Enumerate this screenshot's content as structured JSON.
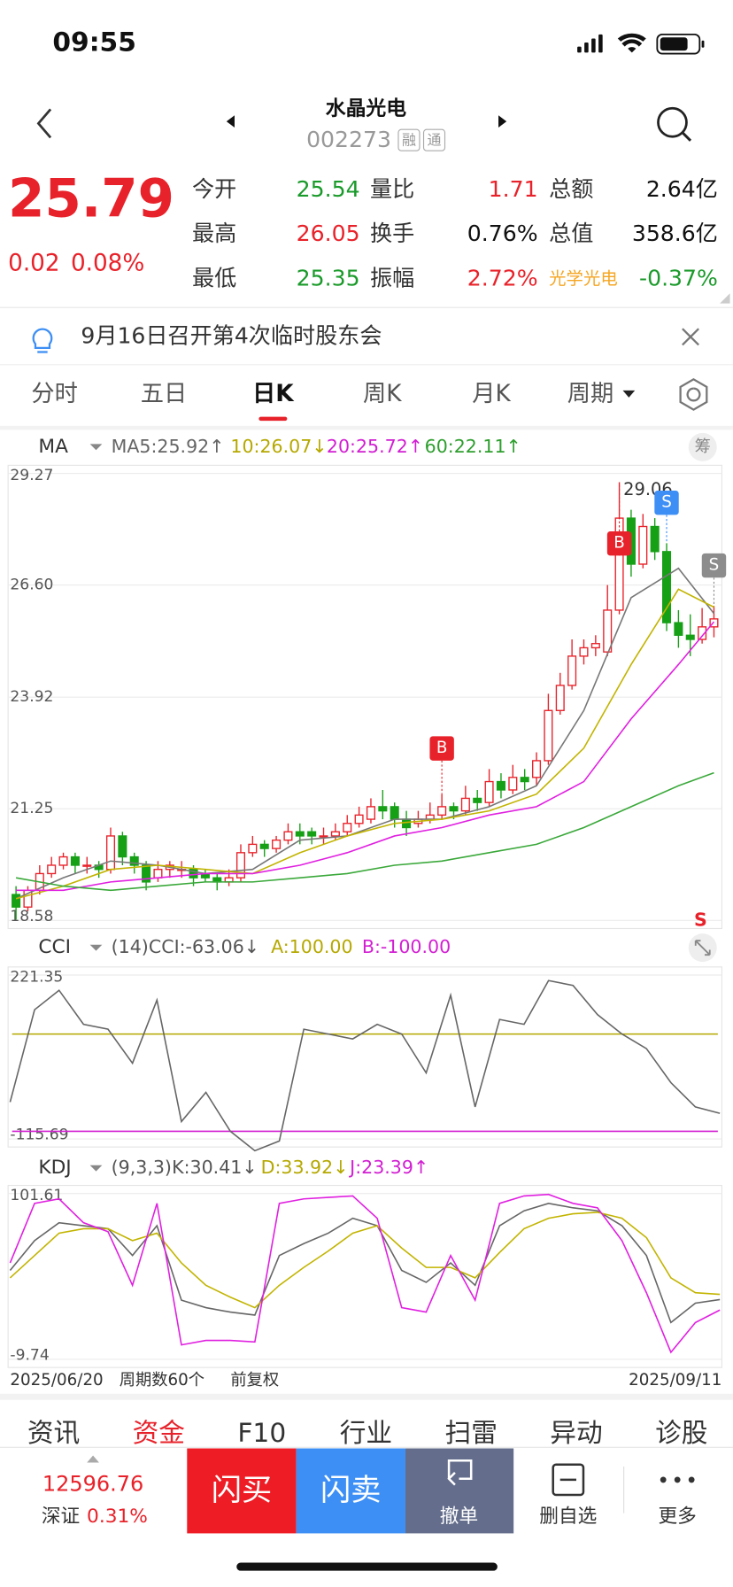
{
  "status": {
    "time": "09:55"
  },
  "header": {
    "name": "水晶光电",
    "code": "002273",
    "badges": [
      "融",
      "通"
    ]
  },
  "quote": {
    "price": "25.79",
    "change": "0.02",
    "change_pct": "0.08%",
    "stats": [
      [
        {
          "label": "今开",
          "value": "25.54",
          "color": "#1a9a2a"
        },
        {
          "label": "量比",
          "value": "1.71",
          "color": "#e8222a"
        },
        {
          "label": "总额",
          "value": "2.64亿",
          "color": "#111111"
        }
      ],
      [
        {
          "label": "最高",
          "value": "26.05",
          "color": "#e8222a"
        },
        {
          "label": "换手",
          "value": "0.76%",
          "color": "#111111"
        },
        {
          "label": "总值",
          "value": "358.6亿",
          "color": "#111111"
        }
      ],
      [
        {
          "label": "最低",
          "value": "25.35",
          "color": "#1a9a2a"
        },
        {
          "label": "振幅",
          "value": "2.72%",
          "color": "#e8222a"
        },
        {
          "label": "光学光电",
          "value": "-0.37%",
          "color": "#1a9a2a"
        }
      ]
    ]
  },
  "notice": "9月16日召开第4次临时股东会",
  "tabs": {
    "items": [
      "分时",
      "五日",
      "日K",
      "周K",
      "月K",
      "周期"
    ],
    "active": 2
  },
  "kline": {
    "legend": {
      "name": "MA",
      "items": [
        {
          "text": "MA5:25.92↑",
          "color": "#666666"
        },
        {
          "text": "10:26.07↓",
          "color": "#b5a800"
        },
        {
          "text": "20:25.72↑",
          "color": "#d21fd2"
        },
        {
          "text": "60:22.11↑",
          "color": "#2e9e2e"
        }
      ],
      "chip": "筹"
    },
    "ylim": [
      18.58,
      29.27
    ],
    "yticks": [
      29.27,
      {
        "value": 26.6,
        "label": "26.60"
      },
      23.92,
      21.25,
      18.58
    ],
    "peak_label": "29.06",
    "open": [
      19.2,
      18.9,
      19.3,
      19.7,
      19.9,
      20.1,
      19.9,
      19.9,
      19.8,
      20.6,
      20.1,
      19.9,
      19.6,
      19.8,
      19.8,
      19.8,
      19.7,
      19.6,
      19.5,
      19.6,
      20.2,
      20.4,
      20.3,
      20.5,
      20.7,
      20.7,
      20.6,
      20.6,
      20.7,
      20.9,
      21.0,
      21.3,
      21.3,
      21.0,
      20.9,
      21.0,
      21.1,
      21.3,
      21.2,
      21.5,
      21.4,
      21.9,
      21.7,
      22.0,
      22.0,
      22.4,
      23.6,
      24.2,
      24.9,
      25.1,
      25.0,
      26.0,
      28.2,
      27.1,
      28.0,
      27.4,
      25.7,
      25.4,
      25.3,
      25.6
    ],
    "close": [
      18.9,
      19.3,
      19.7,
      19.9,
      20.1,
      19.9,
      19.9,
      19.8,
      20.6,
      20.1,
      19.9,
      19.5,
      19.8,
      19.9,
      19.8,
      19.6,
      19.6,
      19.5,
      19.6,
      20.2,
      20.4,
      20.3,
      20.5,
      20.7,
      20.6,
      20.6,
      20.6,
      20.7,
      20.9,
      21.1,
      21.3,
      21.2,
      21.0,
      20.8,
      21.0,
      21.1,
      21.3,
      21.2,
      21.5,
      21.4,
      21.9,
      21.7,
      22.0,
      21.9,
      22.4,
      23.6,
      24.2,
      24.9,
      25.1,
      25.2,
      26.0,
      28.2,
      27.1,
      28.0,
      27.4,
      25.7,
      25.4,
      25.3,
      25.6,
      25.79
    ],
    "high": [
      19.4,
      19.4,
      19.9,
      20.1,
      20.2,
      20.2,
      20.1,
      20.0,
      20.8,
      20.7,
      20.2,
      20.0,
      20.0,
      20.0,
      20.0,
      19.9,
      19.8,
      19.7,
      19.8,
      20.4,
      20.6,
      20.5,
      20.6,
      20.9,
      20.9,
      20.8,
      20.8,
      20.9,
      21.1,
      21.3,
      21.5,
      21.7,
      21.4,
      21.2,
      21.2,
      21.4,
      21.6,
      21.4,
      21.8,
      21.7,
      22.2,
      22.1,
      22.3,
      22.2,
      22.6,
      24.0,
      24.5,
      25.3,
      25.3,
      25.4,
      26.6,
      29.06,
      28.4,
      28.3,
      28.2,
      27.6,
      26.0,
      25.9,
      26.05,
      26.1
    ],
    "low": [
      18.6,
      18.8,
      19.2,
      19.6,
      19.8,
      19.7,
      19.7,
      19.6,
      19.7,
      19.9,
      19.7,
      19.3,
      19.5,
      19.6,
      19.6,
      19.4,
      19.5,
      19.3,
      19.4,
      19.5,
      20.1,
      20.1,
      20.2,
      20.4,
      20.4,
      20.4,
      20.4,
      20.5,
      20.6,
      20.8,
      20.9,
      21.0,
      20.8,
      20.6,
      20.8,
      20.9,
      21.0,
      21.0,
      21.1,
      21.2,
      21.3,
      21.5,
      21.6,
      21.7,
      21.8,
      22.3,
      23.5,
      24.1,
      24.7,
      24.9,
      24.9,
      25.9,
      26.8,
      27.0,
      27.2,
      25.5,
      25.1,
      24.9,
      25.2,
      25.35
    ],
    "ma_x": [
      0,
      4,
      8,
      12,
      16,
      20,
      24,
      28,
      32,
      36,
      40,
      44,
      48,
      52,
      56,
      59
    ],
    "ma": [
      {
        "color": "#777777",
        "values": [
          19.1,
          19.6,
          20.0,
          19.9,
          19.7,
          19.8,
          20.5,
          20.6,
          21.0,
          21.0,
          21.3,
          21.8,
          23.6,
          26.3,
          27.0,
          25.92
        ]
      },
      {
        "color": "#c2b400",
        "values": [
          19.1,
          19.4,
          19.8,
          19.9,
          19.8,
          19.7,
          20.2,
          20.6,
          20.9,
          21.0,
          21.2,
          21.6,
          22.7,
          24.7,
          26.5,
          26.07
        ]
      },
      {
        "color": "#e020e0",
        "values": [
          19.3,
          19.3,
          19.5,
          19.6,
          19.7,
          19.7,
          19.9,
          20.2,
          20.6,
          20.8,
          21.1,
          21.3,
          21.9,
          23.4,
          24.7,
          25.72
        ]
      },
      {
        "color": "#3aa83a",
        "values": [
          19.6,
          19.4,
          19.3,
          19.4,
          19.5,
          19.5,
          19.6,
          19.7,
          19.9,
          20.0,
          20.2,
          20.4,
          20.8,
          21.3,
          21.8,
          22.11
        ]
      }
    ],
    "signals": [
      {
        "label": "B",
        "bar": 36,
        "color": "#e8222a"
      },
      {
        "label": "B",
        "bar": 51,
        "color": "#e8222a"
      },
      {
        "label": "S",
        "bar": 55,
        "color": "#3d8ff5"
      },
      {
        "label": "S",
        "bar": 59,
        "color": "#8c8c8c"
      }
    ],
    "corner_signal": "S"
  },
  "cci": {
    "legend": {
      "name": "CCI",
      "params": "(14)",
      "items": [
        {
          "text": "CCI:-63.06↓",
          "color": "#555555"
        },
        {
          "text": "A:100.00",
          "color": "#b5a800"
        },
        {
          "text": "B:-100.00",
          "color": "#d21fd2"
        }
      ]
    },
    "ylim": [
      -115.69,
      221.35
    ],
    "yticks": [
      221.35,
      -115.69
    ],
    "levels": [
      {
        "value": 100,
        "color": "#b5a800"
      },
      {
        "value": -100,
        "color": "#d21fd2"
      }
    ],
    "values": [
      -40,
      150,
      190,
      120,
      110,
      40,
      170,
      -80,
      -20,
      -100,
      -140,
      -120,
      110,
      100,
      90,
      120,
      100,
      20,
      180,
      -50,
      130,
      120,
      210,
      200,
      140,
      100,
      70,
      0,
      -50,
      -63
    ]
  },
  "kdj": {
    "legend": {
      "name": "KDJ",
      "params": "(9,3,3)",
      "items": [
        {
          "text": "K:30.41↓",
          "color": "#555555"
        },
        {
          "text": "D:33.92↓",
          "color": "#b5a800"
        },
        {
          "text": "J:23.39↑",
          "color": "#d21fd2"
        }
      ]
    },
    "ylim": [
      -9.74,
      101.61
    ],
    "yticks": [
      101.61,
      -9.74
    ],
    "series": [
      {
        "name": "K",
        "color": "#666666",
        "values": [
          50,
          70,
          82,
          80,
          78,
          60,
          80,
          30,
          25,
          22,
          20,
          60,
          68,
          75,
          85,
          80,
          50,
          42,
          55,
          40,
          80,
          90,
          95,
          92,
          90,
          80,
          60,
          15,
          28,
          30.41
        ]
      },
      {
        "name": "D",
        "color": "#c2b400",
        "values": [
          45,
          60,
          75,
          78,
          78,
          70,
          75,
          55,
          40,
          32,
          25,
          40,
          52,
          63,
          75,
          80,
          65,
          52,
          52,
          45,
          62,
          78,
          85,
          88,
          89,
          85,
          72,
          45,
          35,
          33.92
        ]
      },
      {
        "name": "J",
        "color": "#e020e0",
        "values": [
          55,
          95,
          98,
          82,
          76,
          40,
          95,
          0,
          3,
          3,
          2,
          95,
          98,
          99,
          100,
          85,
          25,
          22,
          60,
          30,
          95,
          100,
          101,
          95,
          92,
          70,
          35,
          -5,
          15,
          23.39
        ]
      }
    ]
  },
  "footer": {
    "start": "2025/06/20",
    "periods": "周期数60个",
    "adjust": "前复权",
    "end": "2025/09/11"
  },
  "bottom_tabs": {
    "items": [
      "资讯",
      "资金",
      "F10",
      "行业",
      "扫雷",
      "异动",
      "诊股"
    ],
    "active": 1
  },
  "bar": {
    "index_value": "12596.76",
    "index_name": "深证",
    "index_pct": "0.31%",
    "buy": "闪买",
    "sell": "闪卖",
    "cancel": "撤单",
    "remove": "删自选",
    "more": "更多"
  }
}
